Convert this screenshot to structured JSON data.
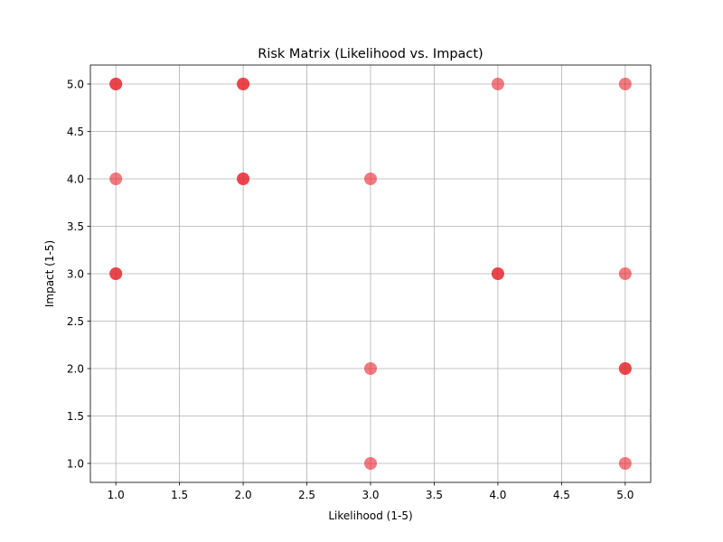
{
  "chart_data": {
    "type": "scatter",
    "title": "Risk Matrix (Likelihood vs. Impact)",
    "xlabel": "Likelihood (1-5)",
    "ylabel": "Impact (1-5)",
    "xlim": [
      0.8,
      5.2
    ],
    "ylim": [
      0.8,
      5.2
    ],
    "grid": true,
    "x_ticks": [
      1.0,
      1.5,
      2.0,
      2.5,
      3.0,
      3.5,
      4.0,
      4.5,
      5.0
    ],
    "y_ticks": [
      1.0,
      1.5,
      2.0,
      2.5,
      3.0,
      3.5,
      4.0,
      4.5,
      5.0
    ],
    "x_tick_labels": [
      "1.0",
      "1.5",
      "2.0",
      "2.5",
      "3.0",
      "3.5",
      "4.0",
      "4.5",
      "5.0"
    ],
    "y_tick_labels": [
      "1.0",
      "1.5",
      "2.0",
      "2.5",
      "3.0",
      "3.5",
      "4.0",
      "4.5",
      "5.0"
    ],
    "marker_color": "#e8232a",
    "grid_color": "#b0b0b0",
    "points": [
      {
        "x": 1,
        "y": 5,
        "count": 2
      },
      {
        "x": 2,
        "y": 5,
        "count": 2
      },
      {
        "x": 4,
        "y": 5,
        "count": 1
      },
      {
        "x": 5,
        "y": 5,
        "count": 1
      },
      {
        "x": 1,
        "y": 4,
        "count": 1
      },
      {
        "x": 2,
        "y": 4,
        "count": 2
      },
      {
        "x": 3,
        "y": 4,
        "count": 1
      },
      {
        "x": 1,
        "y": 3,
        "count": 2
      },
      {
        "x": 4,
        "y": 3,
        "count": 2
      },
      {
        "x": 5,
        "y": 3,
        "count": 1
      },
      {
        "x": 3,
        "y": 2,
        "count": 1
      },
      {
        "x": 5,
        "y": 2,
        "count": 2
      },
      {
        "x": 3,
        "y": 1,
        "count": 1
      },
      {
        "x": 5,
        "y": 1,
        "count": 1
      }
    ]
  }
}
